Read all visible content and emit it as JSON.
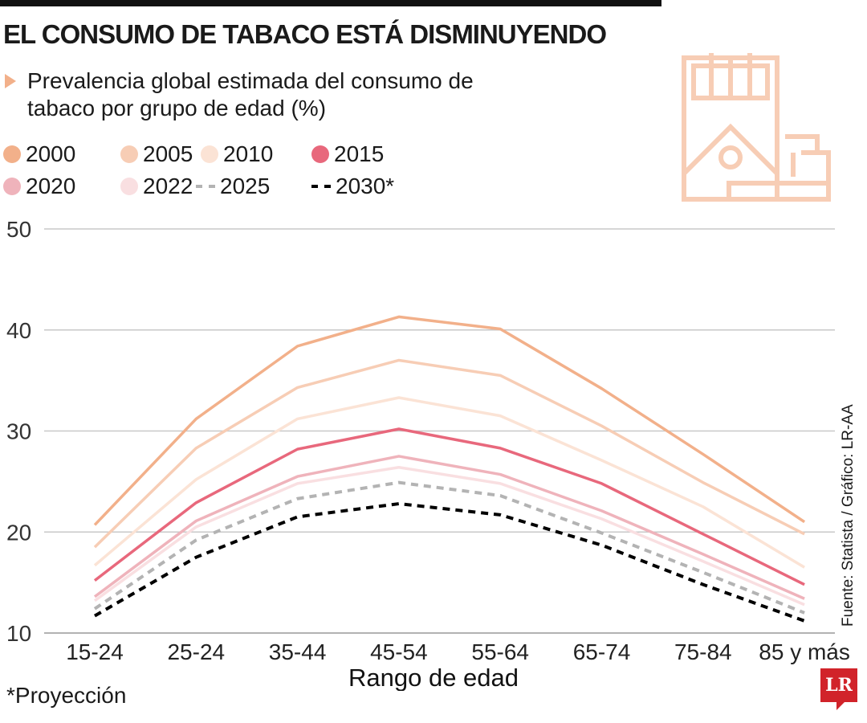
{
  "title": "EL CONSUMO DE TABACO ESTÁ DISMINUYENDO",
  "subtitle": "Prevalencia global estimada del consumo de tabaco por grupo de edad (%)",
  "source": "Fuente: Statista / Gráfico: LR-AA",
  "footnote": "*Proyección",
  "logo": "LR",
  "chart_data": {
    "type": "line",
    "xlabel": "Rango de edad",
    "ylabel": "",
    "ylim": [
      10,
      50
    ],
    "yticks": [
      10,
      20,
      30,
      40,
      50
    ],
    "grid": true,
    "legend_position": "top-left",
    "categories": [
      "15-24",
      "25-24",
      "35-44",
      "45-54",
      "55-64",
      "65-74",
      "75-84",
      "85 y más"
    ],
    "series": [
      {
        "name": "2000",
        "color": "#f2b08a",
        "style": "solid",
        "values": [
          20.7,
          31.2,
          38.4,
          41.3,
          40.1,
          34.2,
          27.7,
          21.0
        ]
      },
      {
        "name": "2005",
        "color": "#f7cdb5",
        "style": "solid",
        "values": [
          18.5,
          28.3,
          34.3,
          37.0,
          35.5,
          30.5,
          24.9,
          19.8
        ]
      },
      {
        "name": "2010",
        "color": "#fbe3d5",
        "style": "solid",
        "values": [
          16.7,
          25.2,
          31.2,
          33.3,
          31.5,
          27.1,
          22.5,
          16.5
        ]
      },
      {
        "name": "2015",
        "color": "#e8687c",
        "style": "solid",
        "values": [
          15.2,
          22.9,
          28.2,
          30.2,
          28.3,
          24.8,
          19.8,
          14.8
        ]
      },
      {
        "name": "2020",
        "color": "#efb3bb",
        "style": "solid",
        "values": [
          13.6,
          21.1,
          25.5,
          27.5,
          25.7,
          22.1,
          17.8,
          13.4
        ]
      },
      {
        "name": "2022",
        "color": "#f9dfe1",
        "style": "solid",
        "values": [
          13.2,
          20.5,
          24.8,
          26.4,
          24.8,
          21.3,
          17.1,
          12.8
        ]
      },
      {
        "name": "2025",
        "color": "#b3b3b3",
        "style": "dashed",
        "values": [
          12.4,
          19.2,
          23.3,
          24.9,
          23.6,
          19.9,
          16.0,
          12.0
        ]
      },
      {
        "name": "2030*",
        "color": "#000000",
        "style": "dashed",
        "values": [
          11.7,
          17.5,
          21.5,
          22.8,
          21.7,
          18.7,
          14.8,
          11.2
        ]
      }
    ]
  }
}
